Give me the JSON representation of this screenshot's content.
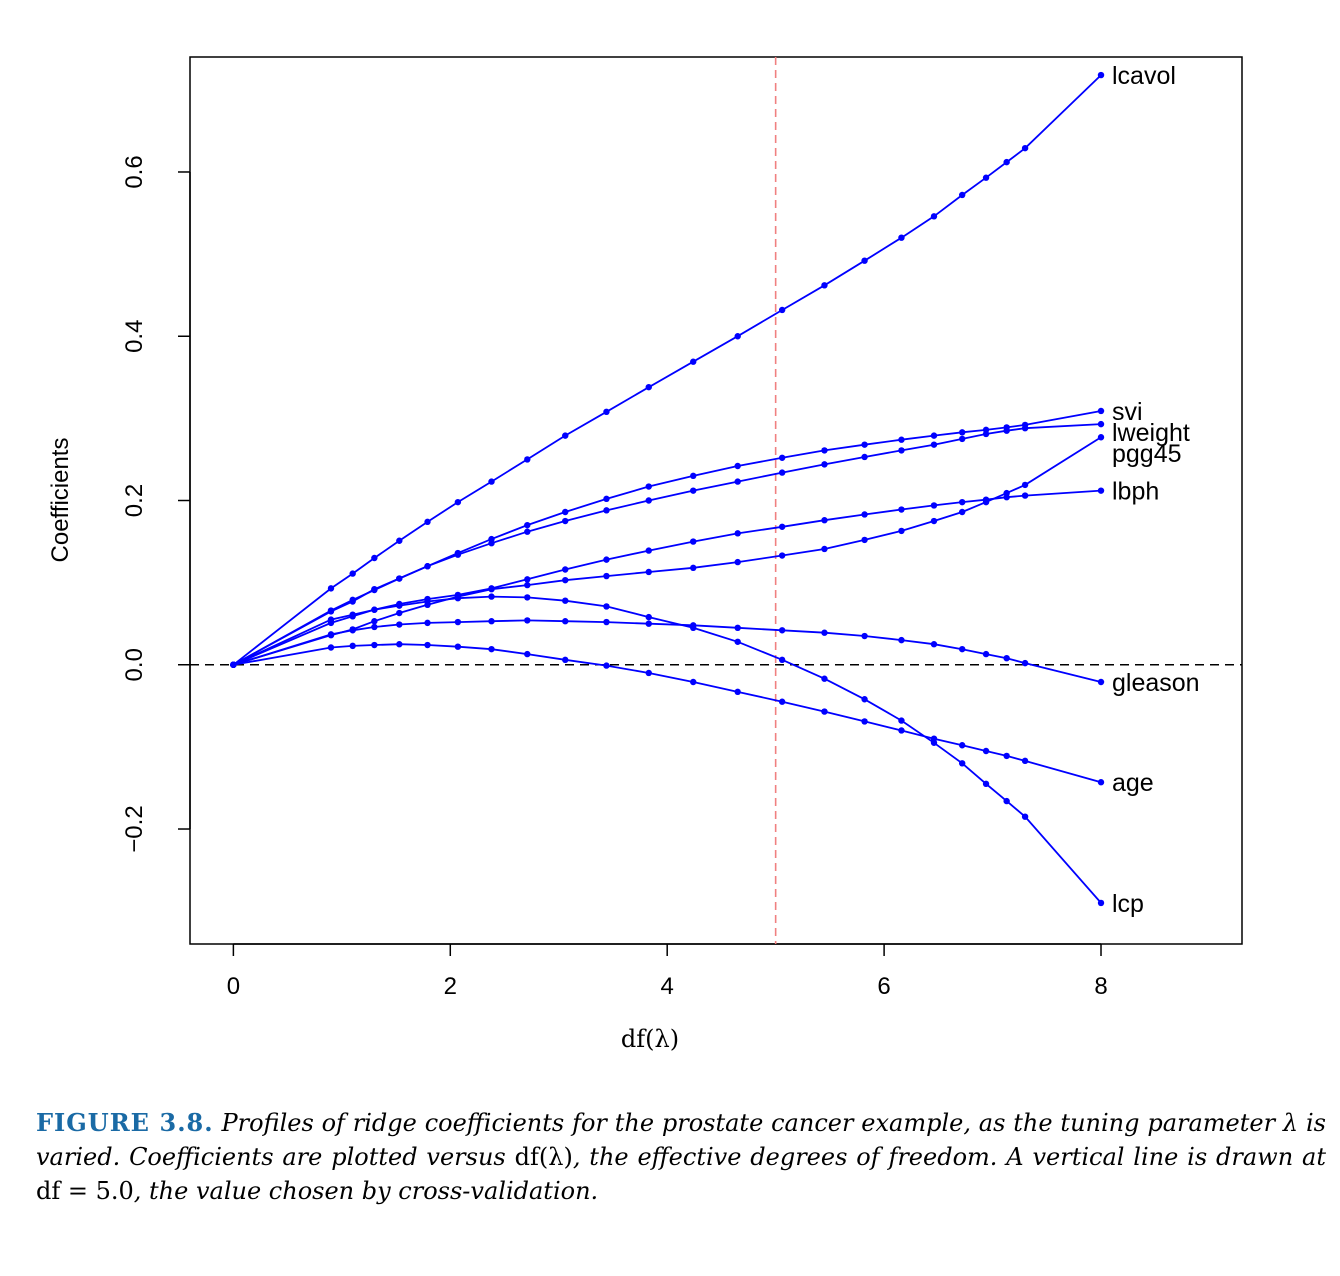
{
  "chart_data": {
    "type": "line",
    "xlabel": "df(λ)",
    "ylabel": "Coefficients",
    "xlim": [
      -0.4,
      9.3
    ],
    "ylim": [
      -0.34,
      0.74
    ],
    "xticks": [
      0,
      2,
      4,
      6,
      8
    ],
    "xtick_labels": [
      "0",
      "2",
      "4",
      "6",
      "8"
    ],
    "yticks": [
      -0.2,
      0.0,
      0.2,
      0.4,
      0.6
    ],
    "ytick_labels": [
      "−0.2",
      "0.0",
      "0.2",
      "0.4",
      "0.6"
    ],
    "hline": {
      "y": 0.0,
      "style": "dashed",
      "color": "#000000"
    },
    "vline": {
      "x": 5.0,
      "style": "dashed",
      "color": "#f08080"
    },
    "series_color": "#0000ff",
    "x": [
      0,
      0.9,
      1.1,
      1.3,
      1.53,
      1.79,
      2.07,
      2.38,
      2.71,
      3.06,
      3.44,
      3.83,
      4.24,
      4.65,
      5.06,
      5.45,
      5.82,
      6.16,
      6.46,
      6.72,
      6.94,
      7.13,
      7.3,
      8.0
    ],
    "series": [
      {
        "name": "lcavol",
        "values": [
          0,
          0.093,
          0.111,
          0.13,
          0.151,
          0.174,
          0.198,
          0.223,
          0.25,
          0.279,
          0.308,
          0.338,
          0.369,
          0.4,
          0.432,
          0.462,
          0.492,
          0.52,
          0.546,
          0.572,
          0.593,
          0.612,
          0.629,
          0.718
        ]
      },
      {
        "name": "svi",
        "values": [
          0,
          0.065,
          0.077,
          0.092,
          0.105,
          0.12,
          0.136,
          0.153,
          0.17,
          0.186,
          0.202,
          0.217,
          0.23,
          0.242,
          0.252,
          0.261,
          0.268,
          0.274,
          0.279,
          0.283,
          0.286,
          0.289,
          0.292,
          0.309
        ]
      },
      {
        "name": "lweight",
        "values": [
          0,
          0.066,
          0.079,
          0.091,
          0.105,
          0.12,
          0.134,
          0.148,
          0.162,
          0.175,
          0.188,
          0.2,
          0.212,
          0.223,
          0.234,
          0.244,
          0.253,
          0.261,
          0.268,
          0.275,
          0.281,
          0.285,
          0.288,
          0.293
        ]
      },
      {
        "name": "pgg45",
        "values": [
          0,
          0.036,
          0.043,
          0.053,
          0.063,
          0.073,
          0.083,
          0.092,
          0.097,
          0.103,
          0.108,
          0.113,
          0.118,
          0.125,
          0.133,
          0.141,
          0.152,
          0.163,
          0.175,
          0.186,
          0.198,
          0.209,
          0.219,
          0.277
        ]
      },
      {
        "name": "lbph",
        "values": [
          0,
          0.051,
          0.059,
          0.067,
          0.074,
          0.08,
          0.085,
          0.093,
          0.104,
          0.116,
          0.128,
          0.139,
          0.15,
          0.16,
          0.168,
          0.176,
          0.183,
          0.189,
          0.194,
          0.198,
          0.201,
          0.204,
          0.206,
          0.212
        ]
      },
      {
        "name": "gleason",
        "values": [
          0,
          0.037,
          0.042,
          0.046,
          0.049,
          0.051,
          0.052,
          0.053,
          0.054,
          0.053,
          0.052,
          0.05,
          0.048,
          0.045,
          0.042,
          0.039,
          0.035,
          0.03,
          0.025,
          0.019,
          0.013,
          0.008,
          0.002,
          -0.021
        ]
      },
      {
        "name": "lcp",
        "values": [
          0,
          0.055,
          0.061,
          0.067,
          0.072,
          0.077,
          0.081,
          0.083,
          0.082,
          0.078,
          0.071,
          0.058,
          0.045,
          0.028,
          0.006,
          -0.017,
          -0.042,
          -0.068,
          -0.095,
          -0.12,
          -0.145,
          -0.166,
          -0.185,
          -0.29
        ]
      },
      {
        "name": "age",
        "values": [
          0,
          0.021,
          0.023,
          0.024,
          0.025,
          0.024,
          0.022,
          0.019,
          0.013,
          0.006,
          -0.001,
          -0.01,
          -0.021,
          -0.033,
          -0.045,
          -0.057,
          -0.069,
          -0.08,
          -0.09,
          -0.098,
          -0.105,
          -0.111,
          -0.117,
          -0.143
        ]
      }
    ]
  },
  "caption": {
    "figure_label": "FIGURE 3.8.",
    "part1": "Profiles of ridge coefficients for the prostate cancer example, as the tuning parameter",
    "lambda": "λ",
    "part2": "is varied. Coefficients are plotted versus",
    "df_lambda": "df(λ)",
    "part3": ", the effective degrees of freedom. A vertical line is drawn at",
    "df_eq": "df = 5.0",
    "part4": ", the value chosen by cross-validation."
  }
}
